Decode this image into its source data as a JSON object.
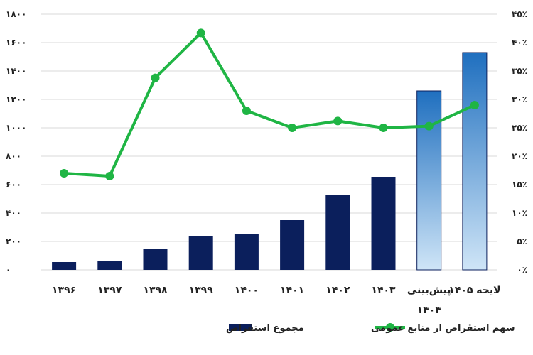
{
  "chart_data": {
    "type": "bar",
    "categories": [
      "۱۳۹۶",
      "۱۳۹۷",
      "۱۳۹۸",
      "۱۳۹۹",
      "۱۴۰۰",
      "۱۴۰۱",
      "۱۴۰۲",
      "۱۴۰۳",
      "پیش‌بینی ۱۴۰۴",
      "لایحه ۱۴۰۵"
    ],
    "category_lines": [
      [
        "۱۳۹۶"
      ],
      [
        "۱۳۹۷"
      ],
      [
        "۱۳۹۸"
      ],
      [
        "۱۳۹۹"
      ],
      [
        "۱۴۰۰"
      ],
      [
        "۱۴۰۱"
      ],
      [
        "۱۴۰۲"
      ],
      [
        "۱۴۰۳"
      ],
      [
        "پیش‌بینی",
        "۱۴۰۴"
      ],
      [
        "لایحه ۱۴۰۵"
      ]
    ],
    "series": [
      {
        "name": "مجموع استقراض",
        "type": "bar",
        "axis": "left",
        "values": [
          55,
          60,
          150,
          240,
          255,
          350,
          525,
          655,
          1260,
          1530
        ]
      },
      {
        "name": "سهم استقراض از منابع عمومی",
        "type": "line",
        "axis": "right",
        "values": [
          17,
          16.5,
          33.8,
          41.7,
          28,
          25,
          26.2,
          25,
          25.3,
          29
        ]
      }
    ],
    "left_axis": {
      "min": 0,
      "max": 1800,
      "ticks": [
        "۰",
        "۲۰۰",
        "۴۰۰",
        "۶۰۰",
        "۸۰۰",
        "۱۰۰۰",
        "۱۲۰۰",
        "۱۴۰۰",
        "۱۶۰۰",
        "۱۸۰۰"
      ]
    },
    "right_axis": {
      "min": 0,
      "max": 45,
      "unit": "%",
      "ticks": [
        "۰٪",
        "۵٪",
        "۱۰٪",
        "۱۵٪",
        "۲۰٪",
        "۲۵٪",
        "۳۰٪",
        "۳۵٪",
        "۴۰٪",
        "۴۵٪"
      ]
    },
    "grid": true,
    "legend_position": "bottom-center",
    "colors": {
      "bar": "#0b1f5c",
      "bar_forecast_top": "#1f6fbf",
      "bar_forecast_bottom": "#cfe5f7",
      "line": "#1fb544",
      "marker": "#1fb544"
    }
  }
}
